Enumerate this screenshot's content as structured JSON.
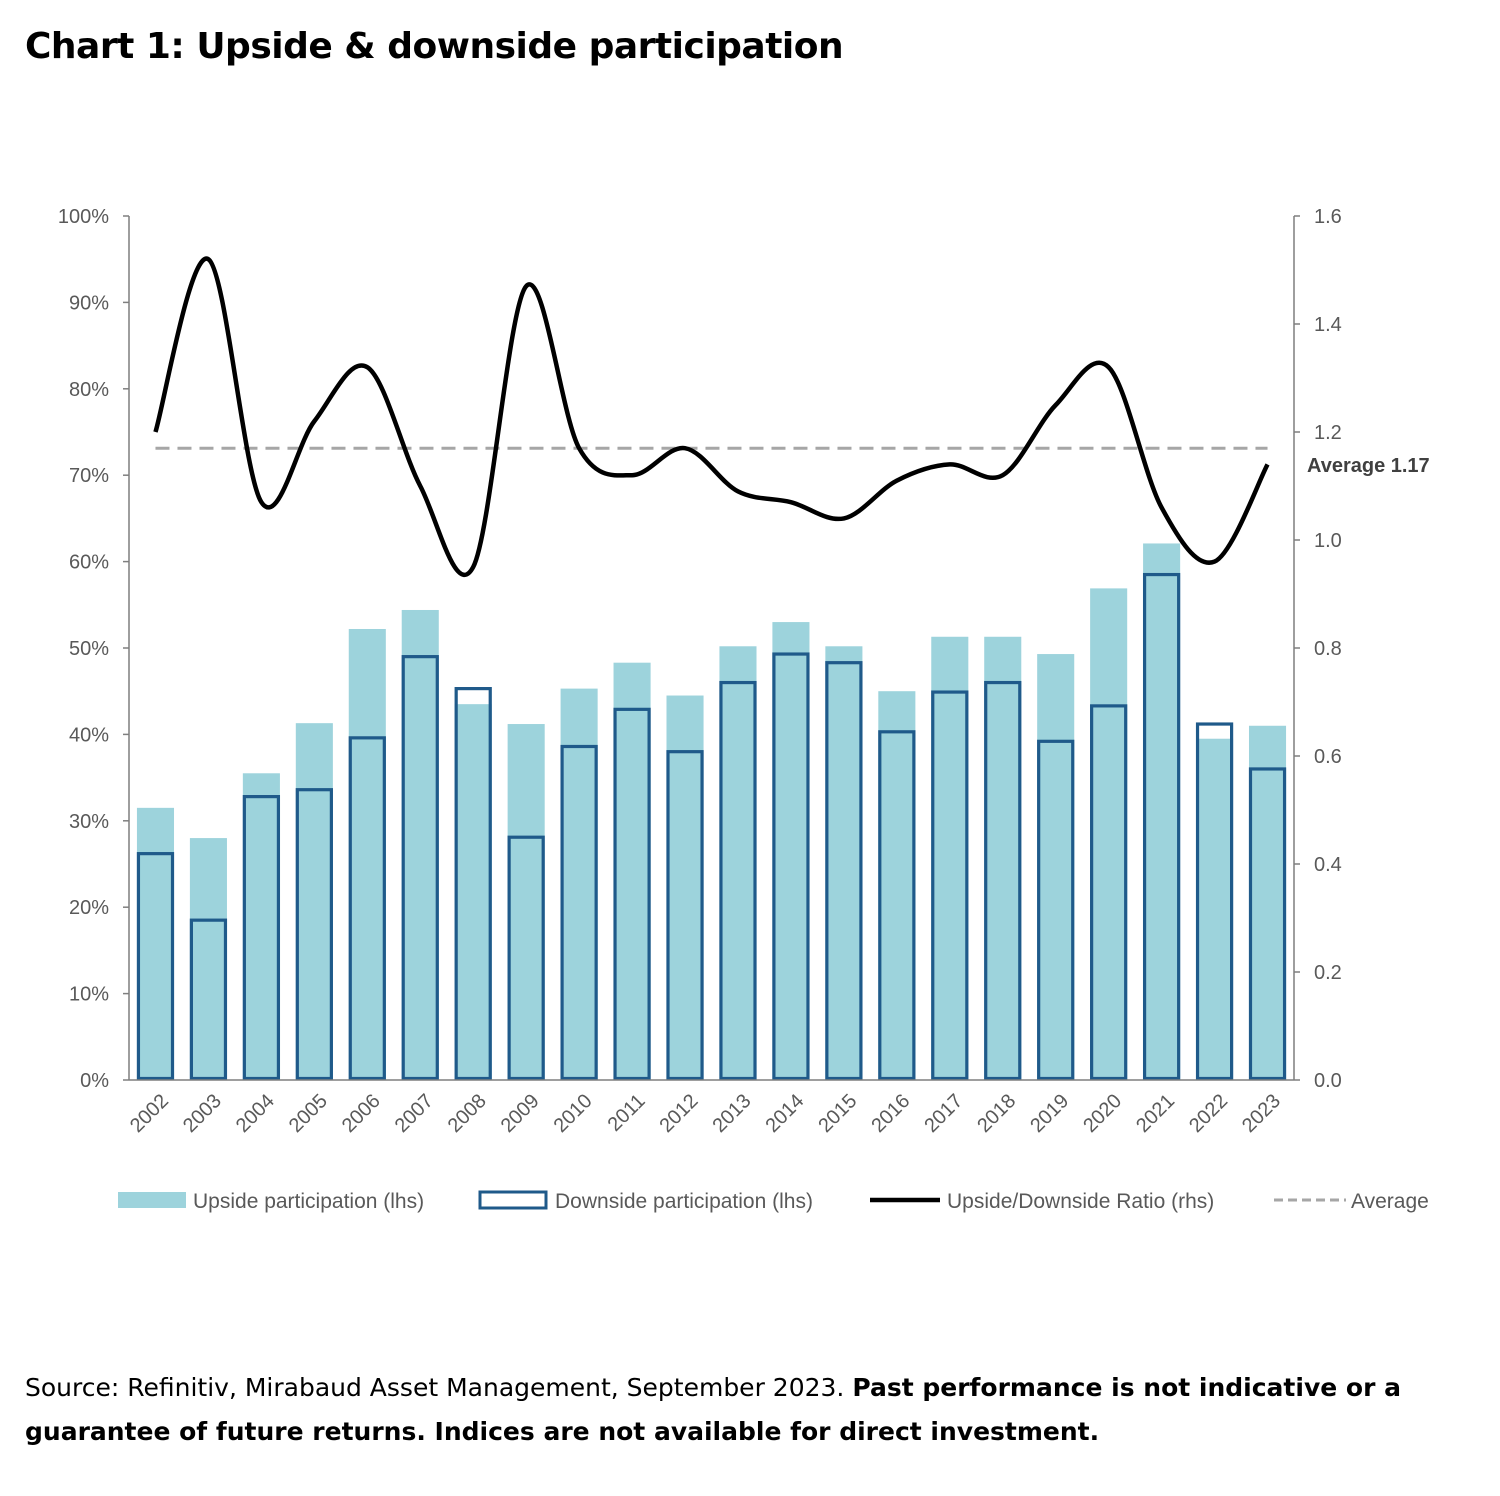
{
  "title": "Chart 1: Upside & downside participation",
  "source": {
    "normal": "Source: Refinitiv, Mirabaud Asset Management, September 2023. ",
    "bold": "Past performance is not indicative or a guarantee of future returns. Indices are not available for direct investment."
  },
  "colors": {
    "upside_fill": "#9dd3dc",
    "downside_edge": "#1f5a8a",
    "ratio_line": "#000000",
    "average_line": "#a6a6a6",
    "axis": "#7f7f7f"
  },
  "chart_data": {
    "type": "bar",
    "categories": [
      "2002",
      "2003",
      "2004",
      "2005",
      "2006",
      "2007",
      "2008",
      "2009",
      "2010",
      "2011",
      "2012",
      "2013",
      "2014",
      "2015",
      "2016",
      "2017",
      "2018",
      "2019",
      "2020",
      "2021",
      "2022",
      "2023"
    ],
    "y_left": {
      "range": [
        0,
        100
      ],
      "ticks": [
        "0%",
        "10%",
        "20%",
        "30%",
        "40%",
        "50%",
        "60%",
        "70%",
        "80%",
        "90%",
        "100%"
      ]
    },
    "y_right": {
      "range": [
        0,
        1.6
      ],
      "ticks": [
        "0.0",
        "0.2",
        "0.4",
        "0.6",
        "0.8",
        "1.0",
        "1.2",
        "1.4",
        "1.6"
      ]
    },
    "series": [
      {
        "name": "Upside participation (lhs)",
        "type": "bar",
        "axis": "left",
        "values": [
          31.5,
          28.0,
          35.5,
          41.3,
          52.2,
          54.4,
          43.5,
          41.2,
          45.3,
          48.3,
          44.5,
          50.2,
          53.0,
          50.2,
          45.0,
          51.3,
          51.3,
          49.3,
          56.9,
          62.1,
          39.5,
          41.0
        ]
      },
      {
        "name": "Downside participation (lhs)",
        "type": "bar-outline",
        "axis": "left",
        "values": [
          26.2,
          18.5,
          32.8,
          33.6,
          39.6,
          49.0,
          45.3,
          28.1,
          38.6,
          42.9,
          38.0,
          46.0,
          49.3,
          48.3,
          40.3,
          44.9,
          46.0,
          39.2,
          43.3,
          58.5,
          41.2,
          36.0
        ]
      },
      {
        "name": "Upside/Downside Ratio (rhs)",
        "type": "line",
        "axis": "right",
        "values": [
          1.2,
          1.52,
          1.07,
          1.22,
          1.32,
          1.1,
          0.95,
          1.47,
          1.17,
          1.12,
          1.17,
          1.09,
          1.07,
          1.04,
          1.11,
          1.14,
          1.12,
          1.25,
          1.32,
          1.06,
          0.96,
          1.14
        ]
      },
      {
        "name": "Average",
        "type": "hline",
        "axis": "right",
        "value": 1.17
      }
    ],
    "annotations": [
      {
        "text": "Average 1.17"
      }
    ],
    "legend_position": "bottom",
    "grid": false
  }
}
